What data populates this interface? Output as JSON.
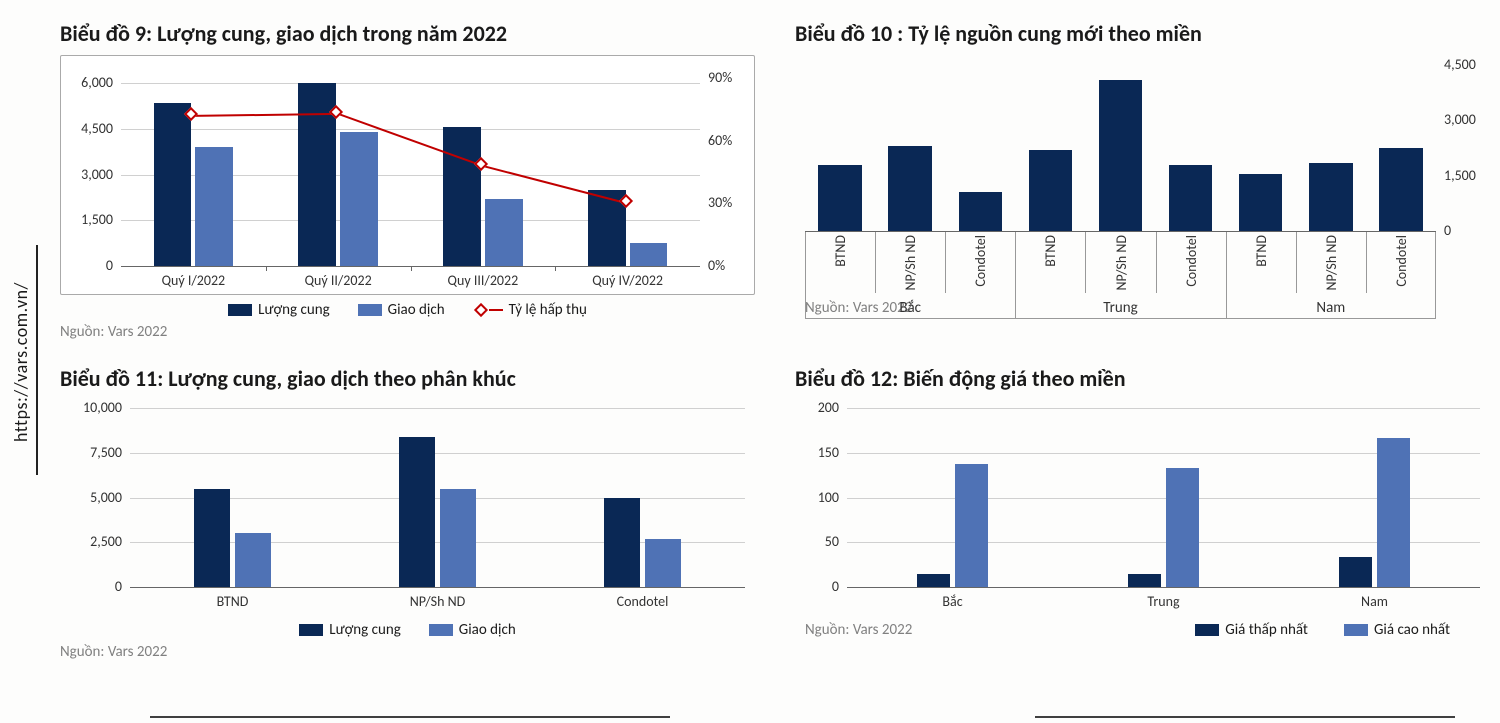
{
  "side_url": "https://vars.com.vn/",
  "colors": {
    "dark": "#0a2855",
    "light": "#4f72b5",
    "red": "#c00000",
    "grid": "#d0d0d0",
    "axis": "#666666"
  },
  "chart9": {
    "title": "Biểu đồ 9: Lượng cung, giao dịch trong năm 2022",
    "source": "Nguồn: Vars 2022",
    "categories": [
      "Quý I/2022",
      "Quý II/2022",
      "Quy III/2022",
      "Quý IV/2022"
    ],
    "y1_ticks": [
      0,
      1500,
      3000,
      4500,
      6000
    ],
    "y1_max": 6500,
    "y2_ticks": [
      0,
      30,
      60,
      90
    ],
    "y2_max": 95,
    "series": {
      "supply": {
        "label": "Lượng cung",
        "values": [
          5350,
          6000,
          4550,
          2500
        ],
        "color": "#0a2855"
      },
      "trans": {
        "label": "Giao dịch",
        "values": [
          3900,
          4400,
          2200,
          750
        ],
        "color": "#4f72b5"
      },
      "absorb": {
        "label": "Tỷ lệ hấp thụ",
        "values": [
          72,
          73,
          48,
          30
        ],
        "color": "#c00000"
      }
    },
    "legend": [
      "Lượng cung",
      "Giao dịch",
      "Tỷ lệ hấp thụ"
    ]
  },
  "chart10": {
    "title": "Biểu đồ 10 : Tỷ lệ nguồn cung mới theo miền",
    "source": "Nguồn: Vars 2022",
    "y_ticks": [
      0,
      1500,
      3000,
      4500
    ],
    "y_max": 4500,
    "groups": [
      "Bắc",
      "Trung",
      "Nam"
    ],
    "sub_cats": [
      "BTND",
      "NP/Sh ND",
      "Condotel"
    ],
    "values": [
      [
        1800,
        2300,
        1050
      ],
      [
        2200,
        4100,
        1800
      ],
      [
        1550,
        1850,
        2250
      ]
    ],
    "color": "#0a2855"
  },
  "chart11": {
    "title": "Biểu đồ 11: Lượng cung, giao dịch theo phân khúc",
    "source": "Nguồn: Vars 2022",
    "categories": [
      "BTND",
      "NP/Sh ND",
      "Condotel"
    ],
    "y_ticks": [
      0,
      2500,
      5000,
      7500,
      10000
    ],
    "y_max": 10000,
    "series": {
      "supply": {
        "label": "Lượng cung",
        "values": [
          5500,
          8400,
          5000
        ],
        "color": "#0a2855"
      },
      "trans": {
        "label": "Giao dịch",
        "values": [
          3000,
          5500,
          2700
        ],
        "color": "#4f72b5"
      }
    },
    "legend": [
      "Lượng cung",
      "Giao dịch"
    ]
  },
  "chart12": {
    "title": "Biểu đồ 12: Biến động giá theo miền",
    "source": "Nguồn: Vars 2022",
    "categories": [
      "Bắc",
      "Trung",
      "Nam"
    ],
    "y_ticks": [
      0,
      50,
      100,
      150,
      200
    ],
    "y_max": 200,
    "series": {
      "low": {
        "label": "Giá thấp nhất",
        "values": [
          15,
          15,
          33
        ],
        "color": "#0a2855"
      },
      "high": {
        "label": "Giá cao nhất",
        "values": [
          137,
          133,
          166
        ],
        "color": "#4f72b5"
      }
    },
    "legend": [
      "Giá thấp nhất",
      "Giá cao nhất"
    ]
  }
}
